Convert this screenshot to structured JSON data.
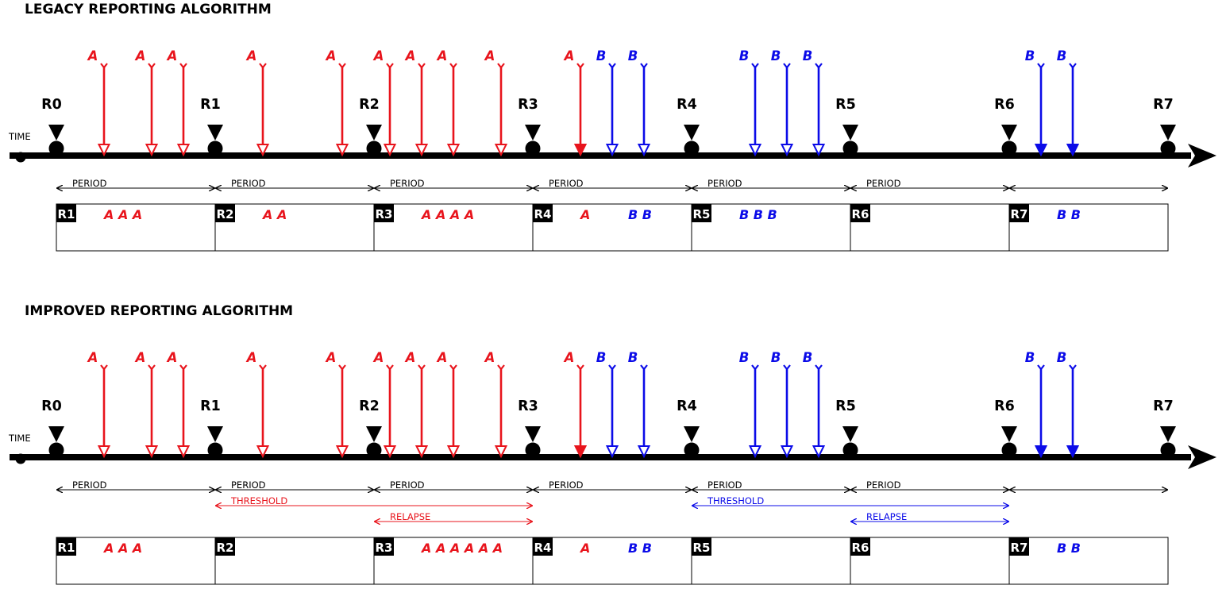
{
  "colors": {
    "a": "#e8141c",
    "b": "#0b0be8",
    "axis": "#000000"
  },
  "time_label": "TIME",
  "period_label": "PERIOD",
  "report_labels": [
    "R0",
    "R1",
    "R2",
    "R3",
    "R4",
    "R5",
    "R6",
    "R7"
  ],
  "box_labels": [
    "R1",
    "R2",
    "R3",
    "R4",
    "R5",
    "R6",
    "R7"
  ],
  "events": [
    {
      "t": 0.3,
      "type": "A",
      "filled": false
    },
    {
      "t": 0.6,
      "type": "A",
      "filled": false
    },
    {
      "t": 0.8,
      "type": "A",
      "filled": false
    },
    {
      "t": 1.3,
      "type": "A",
      "filled": false
    },
    {
      "t": 1.8,
      "type": "A",
      "filled": false
    },
    {
      "t": 2.1,
      "type": "A",
      "filled": false
    },
    {
      "t": 2.3,
      "type": "A",
      "filled": false
    },
    {
      "t": 2.5,
      "type": "A",
      "filled": false
    },
    {
      "t": 2.8,
      "type": "A",
      "filled": false
    },
    {
      "t": 3.3,
      "type": "A",
      "filled": true
    },
    {
      "t": 3.5,
      "type": "B",
      "filled": false
    },
    {
      "t": 3.7,
      "type": "B",
      "filled": false
    },
    {
      "t": 4.4,
      "type": "B",
      "filled": false
    },
    {
      "t": 4.6,
      "type": "B",
      "filled": false
    },
    {
      "t": 4.8,
      "type": "B",
      "filled": false
    },
    {
      "t": 6.2,
      "type": "B",
      "filled": true
    },
    {
      "t": 6.4,
      "type": "B",
      "filled": true
    }
  ],
  "panels": [
    {
      "title": "LEGACY REPORTING ALGORITHM",
      "periods": [
        {
          "from": 0,
          "to": 1,
          "label": "PERIOD"
        },
        {
          "from": 1,
          "to": 2,
          "label": "PERIOD"
        },
        {
          "from": 2,
          "to": 3,
          "label": "PERIOD"
        },
        {
          "from": 3,
          "to": 4,
          "label": "PERIOD"
        },
        {
          "from": 4,
          "to": 5,
          "label": "PERIOD"
        },
        {
          "from": 5,
          "to": 6,
          "label": "PERIOD"
        },
        {
          "from": 6,
          "to": 7,
          "label": ""
        }
      ],
      "ranges": [],
      "boxes": [
        {
          "a": "A A A",
          "b": ""
        },
        {
          "a": "A A",
          "b": ""
        },
        {
          "a": "A A A A",
          "b": ""
        },
        {
          "a": "A",
          "b": "B B"
        },
        {
          "a": "",
          "b": "B B B"
        },
        {
          "a": "",
          "b": ""
        },
        {
          "a": "",
          "b": "B B"
        }
      ]
    },
    {
      "title": "IMPROVED REPORTING ALGORITHM",
      "periods": [
        {
          "from": 0,
          "to": 1,
          "label": "PERIOD"
        },
        {
          "from": 1,
          "to": 2,
          "label": "PERIOD"
        },
        {
          "from": 2,
          "to": 3,
          "label": "PERIOD"
        },
        {
          "from": 3,
          "to": 4,
          "label": "PERIOD"
        },
        {
          "from": 4,
          "to": 5,
          "label": "PERIOD"
        },
        {
          "from": 5,
          "to": 6,
          "label": "PERIOD"
        },
        {
          "from": 6,
          "to": 7,
          "label": ""
        }
      ],
      "ranges": [
        {
          "from": 1,
          "to": 3,
          "label": "THRESHOLD",
          "color": "a",
          "row": 1
        },
        {
          "from": 2,
          "to": 3,
          "label": "RELAPSE",
          "color": "a",
          "row": 2
        },
        {
          "from": 4,
          "to": 6,
          "label": "THRESHOLD",
          "color": "b",
          "row": 1
        },
        {
          "from": 5,
          "to": 6,
          "label": "RELAPSE",
          "color": "b",
          "row": 2
        }
      ],
      "boxes": [
        {
          "a": "A A A",
          "b": ""
        },
        {
          "a": "",
          "b": ""
        },
        {
          "a": "A A A A A A",
          "b": ""
        },
        {
          "a": "A",
          "b": "B B"
        },
        {
          "a": "",
          "b": ""
        },
        {
          "a": "",
          "b": ""
        },
        {
          "a": "",
          "b": "B B"
        }
      ]
    }
  ]
}
